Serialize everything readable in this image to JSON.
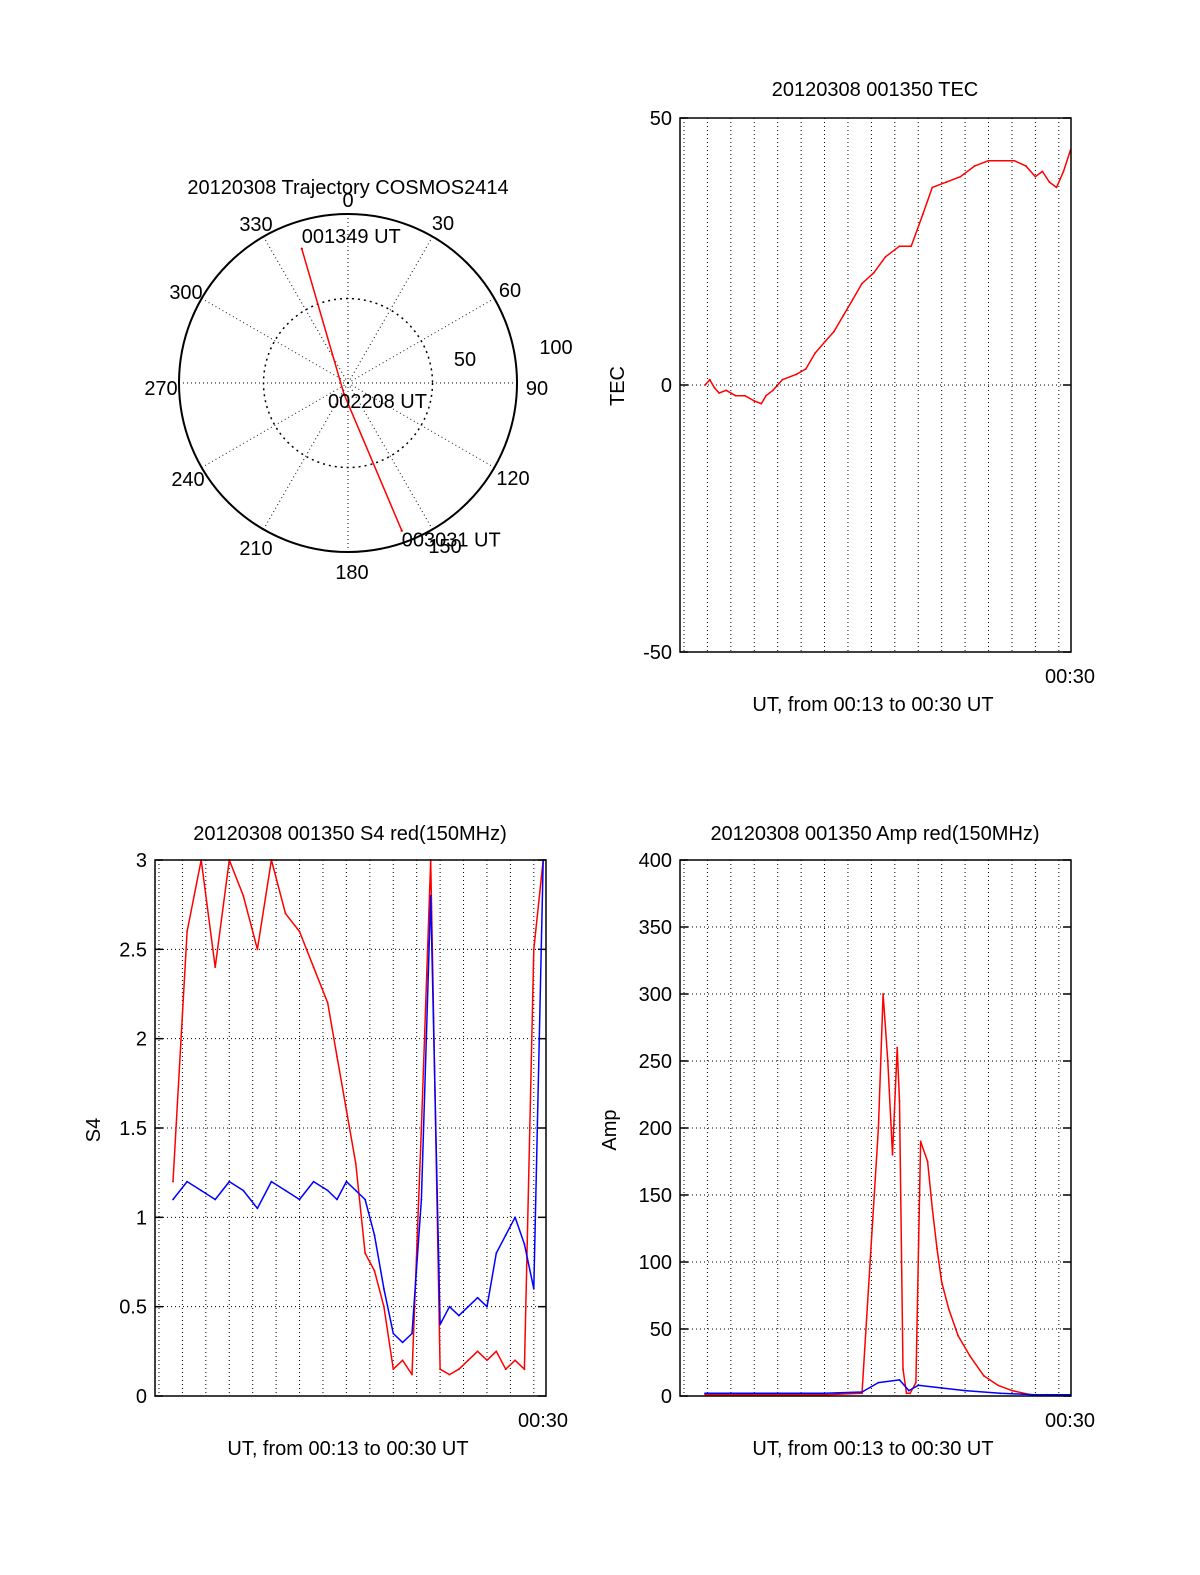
{
  "colors": {
    "red": "#ff0000",
    "blue": "#0000ff",
    "axis": "#000000",
    "grid": "#000000"
  },
  "chart_data": [
    {
      "id": "trajectory",
      "type": "polar",
      "title": "20120308 Trajectory COSMOS2414",
      "azimuth_ticks": [
        "0",
        "30",
        "60",
        "90",
        "120",
        "150",
        "180",
        "210",
        "240",
        "270",
        "300",
        "330"
      ],
      "zenith_ring_labels": [
        "50",
        "100"
      ],
      "zenith_range": [
        0,
        100
      ],
      "track_azimuth_deg": [
        341,
        200,
        160
      ],
      "track_zenith_deg": [
        84,
        7,
        93
      ],
      "track_labels": [
        "001349 UT",
        "002208 UT",
        "003031 UT"
      ],
      "series_color": "red"
    },
    {
      "id": "tec",
      "type": "line",
      "title": "20120308 001350 TEC",
      "ylabel": "TEC",
      "xlabel": "UT, from 00:13 to 00:30 UT",
      "x_end_label": "00:30",
      "ylim": [
        -50,
        50
      ],
      "yticks": [
        "-50",
        "0",
        "50"
      ],
      "xlim": [
        13.83,
        30.52
      ],
      "x_gridlines_min": [
        14,
        15,
        16,
        17,
        18,
        19,
        20,
        21,
        22,
        23,
        24,
        25,
        26,
        27,
        28,
        29,
        30
      ],
      "series": [
        {
          "name": "TEC",
          "color": "red",
          "x": [
            14.9,
            15.1,
            15.3,
            15.5,
            15.8,
            16.2,
            16.6,
            17.0,
            17.3,
            17.5,
            17.8,
            18.2,
            18.8,
            19.2,
            19.6,
            20.0,
            20.4,
            20.8,
            21.2,
            21.6,
            22.1,
            22.6,
            23.2,
            23.7,
            24.2,
            24.6,
            25.2,
            25.8,
            26.4,
            27.0,
            27.6,
            28.1,
            28.6,
            29.0,
            29.3,
            29.6,
            29.9,
            30.2,
            30.5
          ],
          "y": [
            0,
            1,
            -0.5,
            -1.5,
            -1,
            -2,
            -2,
            -3,
            -3.5,
            -2,
            -1,
            1,
            2,
            3,
            6,
            8,
            10,
            13,
            16,
            19,
            21,
            24,
            26,
            26,
            32,
            37,
            38,
            39,
            41,
            42,
            42,
            42,
            41,
            39,
            40,
            38,
            37,
            40,
            44
          ]
        }
      ]
    },
    {
      "id": "s4",
      "type": "line",
      "title": "20120308 001350 S4 red(150MHz)",
      "ylabel": "S4",
      "xlabel": "UT, from 00:13 to 00:30 UT",
      "x_end_label": "00:30",
      "ylim": [
        0,
        3
      ],
      "yticks": [
        "0",
        "0.5",
        "1",
        "1.5",
        "2",
        "2.5",
        "3"
      ],
      "xlim": [
        13.83,
        30.52
      ],
      "x_gridlines_min": [
        14,
        15,
        16,
        17,
        18,
        19,
        20,
        21,
        22,
        23,
        24,
        25,
        26,
        27,
        28,
        29,
        30
      ],
      "series": [
        {
          "name": "S4 red",
          "color": "red",
          "x": [
            14.6,
            15.2,
            15.8,
            16.4,
            17.0,
            17.6,
            18.2,
            18.8,
            19.4,
            20.0,
            20.6,
            21.2,
            21.6,
            22.0,
            22.4,
            22.8,
            23.2,
            23.6,
            24.0,
            24.4,
            24.8,
            25.2,
            25.6,
            26.0,
            26.4,
            26.8,
            27.2,
            27.6,
            28.0,
            28.4,
            28.8,
            29.2,
            29.6,
            30.0,
            30.4
          ],
          "y": [
            1.2,
            2.6,
            3,
            2.4,
            3,
            2.8,
            2.5,
            3,
            2.7,
            2.6,
            2.4,
            2.2,
            1.9,
            1.6,
            1.3,
            0.8,
            0.7,
            0.5,
            0.15,
            0.2,
            0.12,
            1.5,
            3,
            0.15,
            0.12,
            0.15,
            0.2,
            0.25,
            0.2,
            0.25,
            0.15,
            0.2,
            0.15,
            2.5,
            3
          ]
        },
        {
          "name": "S4 blue",
          "color": "blue",
          "x": [
            14.6,
            15.2,
            15.8,
            16.4,
            17.0,
            17.6,
            18.2,
            18.8,
            19.4,
            20.0,
            20.6,
            21.2,
            21.6,
            22.0,
            22.4,
            22.8,
            23.2,
            23.6,
            24.0,
            24.4,
            24.8,
            25.2,
            25.6,
            26.0,
            26.4,
            26.8,
            27.2,
            27.6,
            28.0,
            28.4,
            28.8,
            29.2,
            29.6,
            30.0,
            30.4
          ],
          "y": [
            1.1,
            1.2,
            1.15,
            1.1,
            1.2,
            1.15,
            1.05,
            1.2,
            1.15,
            1.1,
            1.2,
            1.15,
            1.1,
            1.2,
            1.15,
            1.1,
            0.9,
            0.6,
            0.35,
            0.3,
            0.35,
            1.1,
            2.8,
            0.4,
            0.5,
            0.45,
            0.5,
            0.55,
            0.5,
            0.8,
            0.9,
            1.0,
            0.85,
            0.6,
            3
          ]
        }
      ]
    },
    {
      "id": "amp",
      "type": "line",
      "title": "20120308 001350 Amp red(150MHz)",
      "ylabel": "Amp",
      "xlabel": "UT, from 00:13 to 00:30 UT",
      "x_end_label": "00:30",
      "ylim": [
        0,
        400
      ],
      "yticks": [
        "0",
        "50",
        "100",
        "150",
        "200",
        "250",
        "300",
        "350",
        "400"
      ],
      "xlim": [
        13.83,
        30.52
      ],
      "x_gridlines_min": [
        14,
        15,
        16,
        17,
        18,
        19,
        20,
        21,
        22,
        23,
        24,
        25,
        26,
        27,
        28,
        29,
        30
      ],
      "series": [
        {
          "name": "Amp red",
          "color": "red",
          "x": [
            14.9,
            20.0,
            21.6,
            22.3,
            22.5,
            22.7,
            22.9,
            23.1,
            23.2,
            23.35,
            23.5,
            23.65,
            23.9,
            24.1,
            24.4,
            24.6,
            24.8,
            25.0,
            25.3,
            25.7,
            26.2,
            26.8,
            27.4,
            28.0,
            28.8,
            29.5,
            30.5
          ],
          "y": [
            1,
            1,
            2,
            200,
            300,
            250,
            180,
            260,
            220,
            20,
            2,
            2,
            10,
            190,
            175,
            140,
            110,
            85,
            65,
            45,
            30,
            15,
            8,
            4,
            1,
            1,
            1
          ]
        },
        {
          "name": "Amp blue",
          "color": "blue",
          "x": [
            14.9,
            20.0,
            21.6,
            22.3,
            23.2,
            23.6,
            24.0,
            25.0,
            26.0,
            27.5,
            29.0,
            30.5
          ],
          "y": [
            2,
            2,
            3,
            10,
            12,
            4,
            8,
            6,
            4,
            2,
            1,
            1
          ]
        }
      ]
    }
  ]
}
